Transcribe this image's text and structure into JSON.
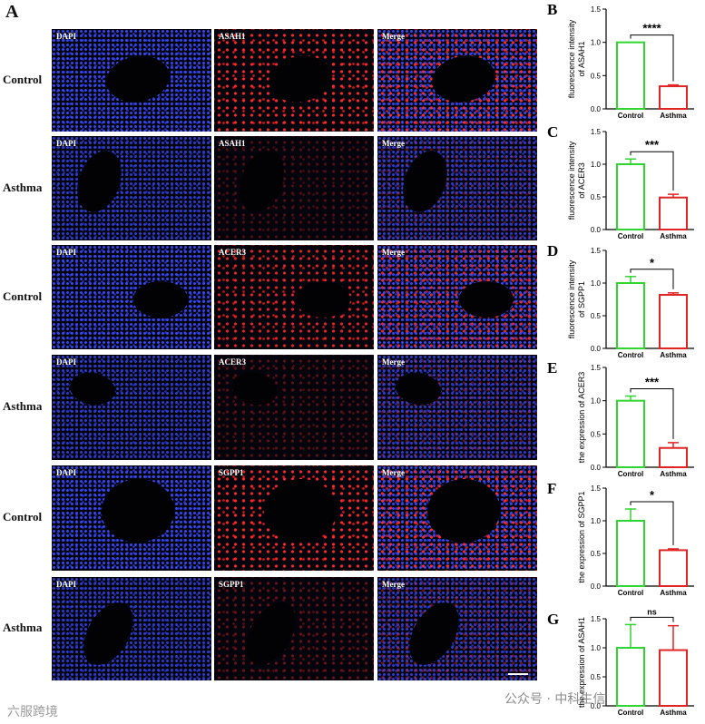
{
  "panel_a": {
    "letter": "A",
    "rows": [
      {
        "group": "Control",
        "labels": [
          "DAPI",
          "ASAH1",
          "Merge"
        ]
      },
      {
        "group": "Asthma",
        "labels": [
          "DAPI",
          "ASAH1",
          "Merge"
        ]
      },
      {
        "group": "Control",
        "labels": [
          "DAPI",
          "ACER3",
          "Merge"
        ]
      },
      {
        "group": "Asthma",
        "labels": [
          "DAPI",
          "ACER3",
          "Merge"
        ]
      },
      {
        "group": "Control",
        "labels": [
          "DAPI",
          "SGPP1",
          "Merge"
        ]
      },
      {
        "group": "Asthma",
        "labels": [
          "DAPI",
          "SGPP1",
          "Merge"
        ]
      }
    ]
  },
  "chart_data": [
    {
      "type": "bar",
      "letter": "B",
      "ylabel": [
        "fluorescence intensity",
        "of ASAH1"
      ],
      "categories": [
        "Control",
        "Asthma"
      ],
      "values": [
        1.0,
        0.34
      ],
      "errors": [
        0.0,
        0.02
      ],
      "colors": [
        "#2fd62f",
        "#e02424"
      ],
      "significance": "****",
      "ylim": [
        0,
        1.5
      ],
      "yticks": [
        {
          "value": 0,
          "label": "0.0"
        },
        0.5,
        {
          "value": 1,
          "label": "1.0"
        },
        1.5
      ]
    },
    {
      "type": "bar",
      "letter": "C",
      "ylabel": [
        "fluorescence intensity",
        "of ACER3"
      ],
      "categories": [
        "Control",
        "Asthma"
      ],
      "values": [
        1.0,
        0.49
      ],
      "errors": [
        0.08,
        0.05
      ],
      "colors": [
        "#2fd62f",
        "#e02424"
      ],
      "significance": "***",
      "ylim": [
        0,
        1.5
      ],
      "yticks": [
        {
          "value": 0,
          "label": "0.0"
        },
        0.5,
        {
          "value": 1,
          "label": "1.0"
        },
        1.5
      ]
    },
    {
      "type": "bar",
      "letter": "D",
      "ylabel": [
        "fluorescence intensity",
        "of SGPP1"
      ],
      "categories": [
        "Control",
        "Asthma"
      ],
      "values": [
        1.0,
        0.82
      ],
      "errors": [
        0.1,
        0.03
      ],
      "colors": [
        "#2fd62f",
        "#e02424"
      ],
      "significance": "*",
      "ylim": [
        0,
        1.5
      ],
      "yticks": [
        {
          "value": 0,
          "label": "0.0"
        },
        0.5,
        {
          "value": 1,
          "label": "1.0"
        },
        1.5
      ]
    },
    {
      "type": "bar",
      "letter": "E",
      "ylabel": [
        "the expression of ACER3"
      ],
      "categories": [
        "Control",
        "Asthma"
      ],
      "values": [
        1.0,
        0.29
      ],
      "errors": [
        0.07,
        0.08
      ],
      "colors": [
        "#2fd62f",
        "#e02424"
      ],
      "significance": "***",
      "ylim": [
        0,
        1.5
      ],
      "yticks": [
        {
          "value": 0,
          "label": "0.0"
        },
        0.5,
        {
          "value": 1,
          "label": "1.0"
        },
        1.5
      ]
    },
    {
      "type": "bar",
      "letter": "F",
      "ylabel": [
        "the expression of SGPP1"
      ],
      "categories": [
        "Control",
        "Asthma"
      ],
      "values": [
        1.0,
        0.55
      ],
      "errors": [
        0.18,
        0.02
      ],
      "colors": [
        "#2fd62f",
        "#e02424"
      ],
      "significance": "*",
      "ylim": [
        0,
        1.5
      ],
      "yticks": [
        {
          "value": 0,
          "label": "0.0"
        },
        0.5,
        {
          "value": 1,
          "label": "1.0"
        },
        1.5
      ]
    },
    {
      "type": "bar",
      "letter": "G",
      "ylabel": [
        "the expression of ASAH1"
      ],
      "categories": [
        "Control",
        "Asthma"
      ],
      "values": [
        1.0,
        0.96
      ],
      "errors": [
        0.4,
        0.42
      ],
      "colors": [
        "#2fd62f",
        "#e02424"
      ],
      "significance": "ns",
      "ylim": [
        0,
        1.5
      ],
      "yticks": [
        {
          "value": 0,
          "label": "0.0"
        },
        0.5,
        {
          "value": 1,
          "label": "1.0"
        },
        1.5
      ]
    }
  ],
  "watermarks": [
    "六服跨境",
    "公众号 · 中科生信"
  ]
}
